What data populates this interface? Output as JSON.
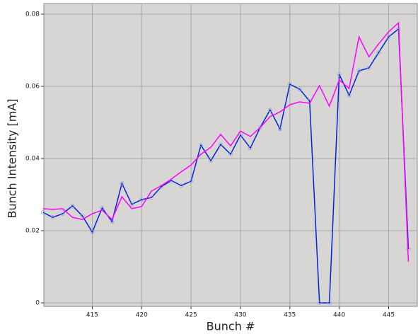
{
  "chart_data": {
    "type": "line",
    "x_label": "Bunch #",
    "y_label": "Bunch Intensity [mA]",
    "x": [
      410,
      411,
      412,
      413,
      414,
      415,
      416,
      417,
      418,
      419,
      420,
      421,
      422,
      423,
      424,
      425,
      426,
      427,
      428,
      429,
      430,
      431,
      432,
      433,
      434,
      435,
      436,
      437,
      438,
      439,
      440,
      441,
      442,
      443,
      444,
      445,
      446,
      447
    ],
    "series": [
      {
        "color": "#0022dd",
        "values": [
          0.0251,
          0.0237,
          0.0247,
          0.0269,
          0.0241,
          0.0196,
          0.0263,
          0.0225,
          0.0331,
          0.0273,
          0.0286,
          0.0292,
          0.0322,
          0.0339,
          0.0325,
          0.0337,
          0.0437,
          0.0394,
          0.0439,
          0.0412,
          0.0465,
          0.0429,
          0.0486,
          0.0535,
          0.0482,
          0.0606,
          0.0592,
          0.0559,
          0,
          0,
          0.0633,
          0.0575,
          0.0643,
          0.0651,
          0.0694,
          0.0737,
          0.0759,
          0.0149
        ]
      },
      {
        "color": "#ff00ff",
        "values": [
          0.0261,
          0.0259,
          0.0261,
          0.0237,
          0.0231,
          0.0247,
          0.0257,
          0.0231,
          0.0294,
          0.0261,
          0.0267,
          0.031,
          0.0325,
          0.0343,
          0.0363,
          0.0382,
          0.0412,
          0.0431,
          0.0467,
          0.0435,
          0.0476,
          0.0461,
          0.0486,
          0.0516,
          0.0529,
          0.0549,
          0.0557,
          0.0553,
          0.0602,
          0.0545,
          0.0618,
          0.0594,
          0.0737,
          0.0682,
          0.0718,
          0.0751,
          0.0776,
          0.0114
        ]
      }
    ],
    "xlim": [
      410.1,
      447.9
    ],
    "xticks": [
      415,
      420,
      425,
      430,
      435,
      440,
      445
    ],
    "ylim": [
      -0.00098,
      0.08294
    ],
    "yticks": [
      0,
      0.02,
      0.04,
      0.06,
      0.08
    ],
    "grid": true
  }
}
